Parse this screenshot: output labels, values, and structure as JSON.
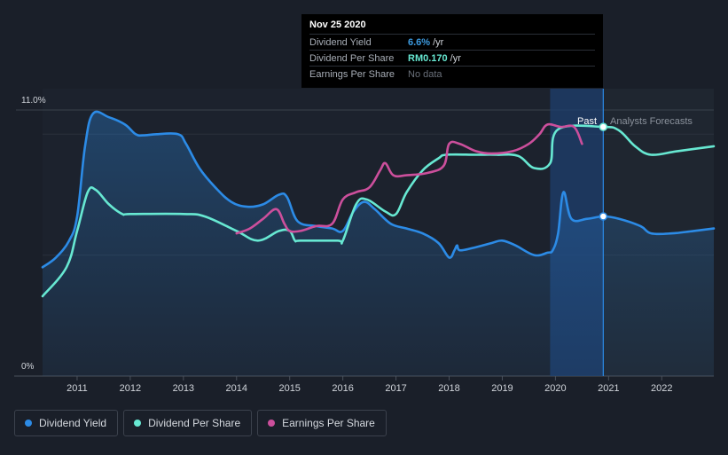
{
  "tooltip": {
    "date": "Nov 25 2020",
    "rows": [
      {
        "label": "Dividend Yield",
        "value": "6.6%",
        "unit": "/yr",
        "color": "#3d9be0"
      },
      {
        "label": "Dividend Per Share",
        "value": "RM0.170",
        "unit": "/yr",
        "color": "#67e8d2"
      },
      {
        "label": "Earnings Per Share",
        "value": "No data",
        "unit": "",
        "color": "#6b717b"
      }
    ]
  },
  "legend": [
    {
      "label": "Dividend Yield",
      "color": "#2c8be6"
    },
    {
      "label": "Dividend Per Share",
      "color": "#67e8d2"
    },
    {
      "label": "Earnings Per Share",
      "color": "#cc4f9c"
    }
  ],
  "chart_data": {
    "type": "line",
    "y_axis_labels": [
      "11.0%",
      "0%"
    ],
    "ylim": [
      0,
      11.0
    ],
    "x_ticks": [
      "2011",
      "2012",
      "2013",
      "2014",
      "2015",
      "2016",
      "2017",
      "2018",
      "2019",
      "2020",
      "2021",
      "2022"
    ],
    "x_range": [
      2010.35,
      2022.98
    ],
    "past_label": "Past",
    "forecast_label": "Analysts Forecasts",
    "divider_x": 2020.9,
    "highlight_range": [
      2019.9,
      2020.9
    ],
    "colors": {
      "yield": "#2c8be6",
      "dps": "#67e8d2",
      "eps": "#cc4f9c"
    },
    "series": [
      {
        "name": "Dividend Yield",
        "unit": "%",
        "x": [
          2010.35,
          2010.6,
          2010.85,
          2011.0,
          2011.15,
          2011.3,
          2011.6,
          2011.9,
          2012.1,
          2012.25,
          2012.5,
          2012.9,
          2013.05,
          2013.3,
          2013.6,
          2013.9,
          2014.2,
          2014.5,
          2014.8,
          2014.95,
          2015.15,
          2015.5,
          2015.8,
          2016.0,
          2016.2,
          2016.4,
          2016.6,
          2016.9,
          2017.2,
          2017.5,
          2017.8,
          2018.0,
          2018.1,
          2018.15,
          2018.2,
          2018.45,
          2018.8,
          2019.0,
          2019.25,
          2019.6,
          2019.85,
          2019.95,
          2020.05,
          2020.15,
          2020.3,
          2020.6,
          2020.9,
          2021.2,
          2021.6,
          2021.8,
          2022.2,
          2022.6,
          2022.98
        ],
        "values": [
          4.5,
          4.9,
          5.6,
          6.6,
          9.5,
          10.85,
          10.7,
          10.4,
          10.0,
          9.95,
          10.0,
          10.0,
          9.6,
          8.6,
          7.8,
          7.2,
          7.0,
          7.1,
          7.5,
          7.4,
          6.4,
          6.2,
          6.1,
          6.0,
          6.8,
          7.2,
          6.9,
          6.3,
          6.1,
          5.9,
          5.5,
          4.9,
          5.2,
          5.4,
          5.2,
          5.3,
          5.5,
          5.6,
          5.4,
          5.0,
          5.1,
          5.2,
          5.9,
          7.6,
          6.5,
          6.5,
          6.6,
          6.5,
          6.2,
          5.9,
          5.9,
          6.0,
          6.1
        ]
      },
      {
        "name": "Dividend Per Share",
        "x": [
          2010.35,
          2010.8,
          2011.0,
          2011.2,
          2011.35,
          2011.6,
          2011.85,
          2012.0,
          2013.0,
          2013.4,
          2014.0,
          2014.4,
          2014.8,
          2015.0,
          2015.1,
          2015.2,
          2015.9,
          2016.0,
          2016.25,
          2016.45,
          2016.8,
          2017.0,
          2017.2,
          2017.5,
          2017.8,
          2017.95,
          2018.5,
          2018.9,
          2019.3,
          2019.6,
          2019.9,
          2020.05,
          2020.9,
          2021.2,
          2021.5,
          2021.8,
          2022.3,
          2022.98
        ],
        "values": [
          3.3,
          4.5,
          6.0,
          7.6,
          7.7,
          7.1,
          6.7,
          6.7,
          6.7,
          6.6,
          6.0,
          5.6,
          6.0,
          6.0,
          5.6,
          5.6,
          5.6,
          5.6,
          7.1,
          7.3,
          6.8,
          6.7,
          7.6,
          8.5,
          9.0,
          9.15,
          9.15,
          9.15,
          9.1,
          8.6,
          8.8,
          10.2,
          10.3,
          10.15,
          9.5,
          9.15,
          9.3,
          9.5
        ]
      },
      {
        "name": "Earnings Per Share",
        "x": [
          2014.0,
          2014.25,
          2014.5,
          2014.75,
          2014.9,
          2015.0,
          2015.2,
          2015.5,
          2015.8,
          2016.0,
          2016.25,
          2016.5,
          2016.7,
          2016.8,
          2016.95,
          2017.2,
          2017.6,
          2017.9,
          2018.0,
          2018.2,
          2018.5,
          2018.8,
          2019.2,
          2019.5,
          2019.7,
          2019.85,
          2020.1,
          2020.35,
          2020.5
        ],
        "values": [
          5.9,
          6.1,
          6.5,
          6.9,
          6.3,
          6.0,
          6.0,
          6.2,
          6.3,
          7.3,
          7.6,
          7.8,
          8.5,
          8.8,
          8.3,
          8.3,
          8.4,
          8.7,
          9.6,
          9.6,
          9.3,
          9.2,
          9.3,
          9.6,
          10.0,
          10.4,
          10.3,
          10.3,
          9.6
        ]
      }
    ],
    "markers": [
      {
        "series": "Dividend Per Share",
        "x": 2020.9,
        "y": 10.3
      },
      {
        "series": "Dividend Yield",
        "x": 2020.9,
        "y": 6.6
      }
    ]
  }
}
